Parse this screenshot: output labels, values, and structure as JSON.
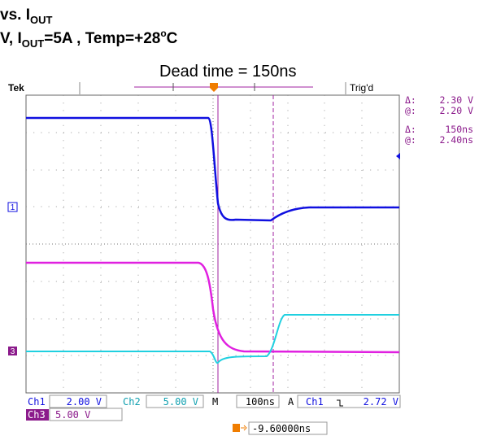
{
  "header": {
    "line1": {
      "text": "vs. I",
      "sub": "OUT"
    },
    "line2": {
      "text": "V, I",
      "sub": "OUT",
      "rest": "=5A , Temp=+28",
      "sup": "o",
      "end": "C"
    },
    "annotation": "Dead time = 150ns"
  },
  "scope": {
    "brand": "Tek",
    "status": "Trig'd",
    "readouts": [
      {
        "label": "Δ:",
        "value": "2.30 V"
      },
      {
        "label": "@:",
        "value": "2.20 V"
      },
      {
        "label": "Δ:",
        "value": "150ns"
      },
      {
        "label": "@:",
        "value": "2.40ns"
      }
    ],
    "markers": {
      "ch1": "1",
      "ch3": "3"
    },
    "settings": {
      "ch1": "Ch1",
      "ch1_scale": "2.00 V",
      "ch2": "Ch2",
      "ch2_scale": "5.00 V",
      "time_label": "M",
      "time_scale": "100ns",
      "trigger_label": "A",
      "trigger_source": "Ch1",
      "trigger_level": "2.72 V",
      "ch3": "Ch3",
      "ch3_scale": "5.00 V"
    },
    "trigger_position": "-9.60000ns"
  }
}
